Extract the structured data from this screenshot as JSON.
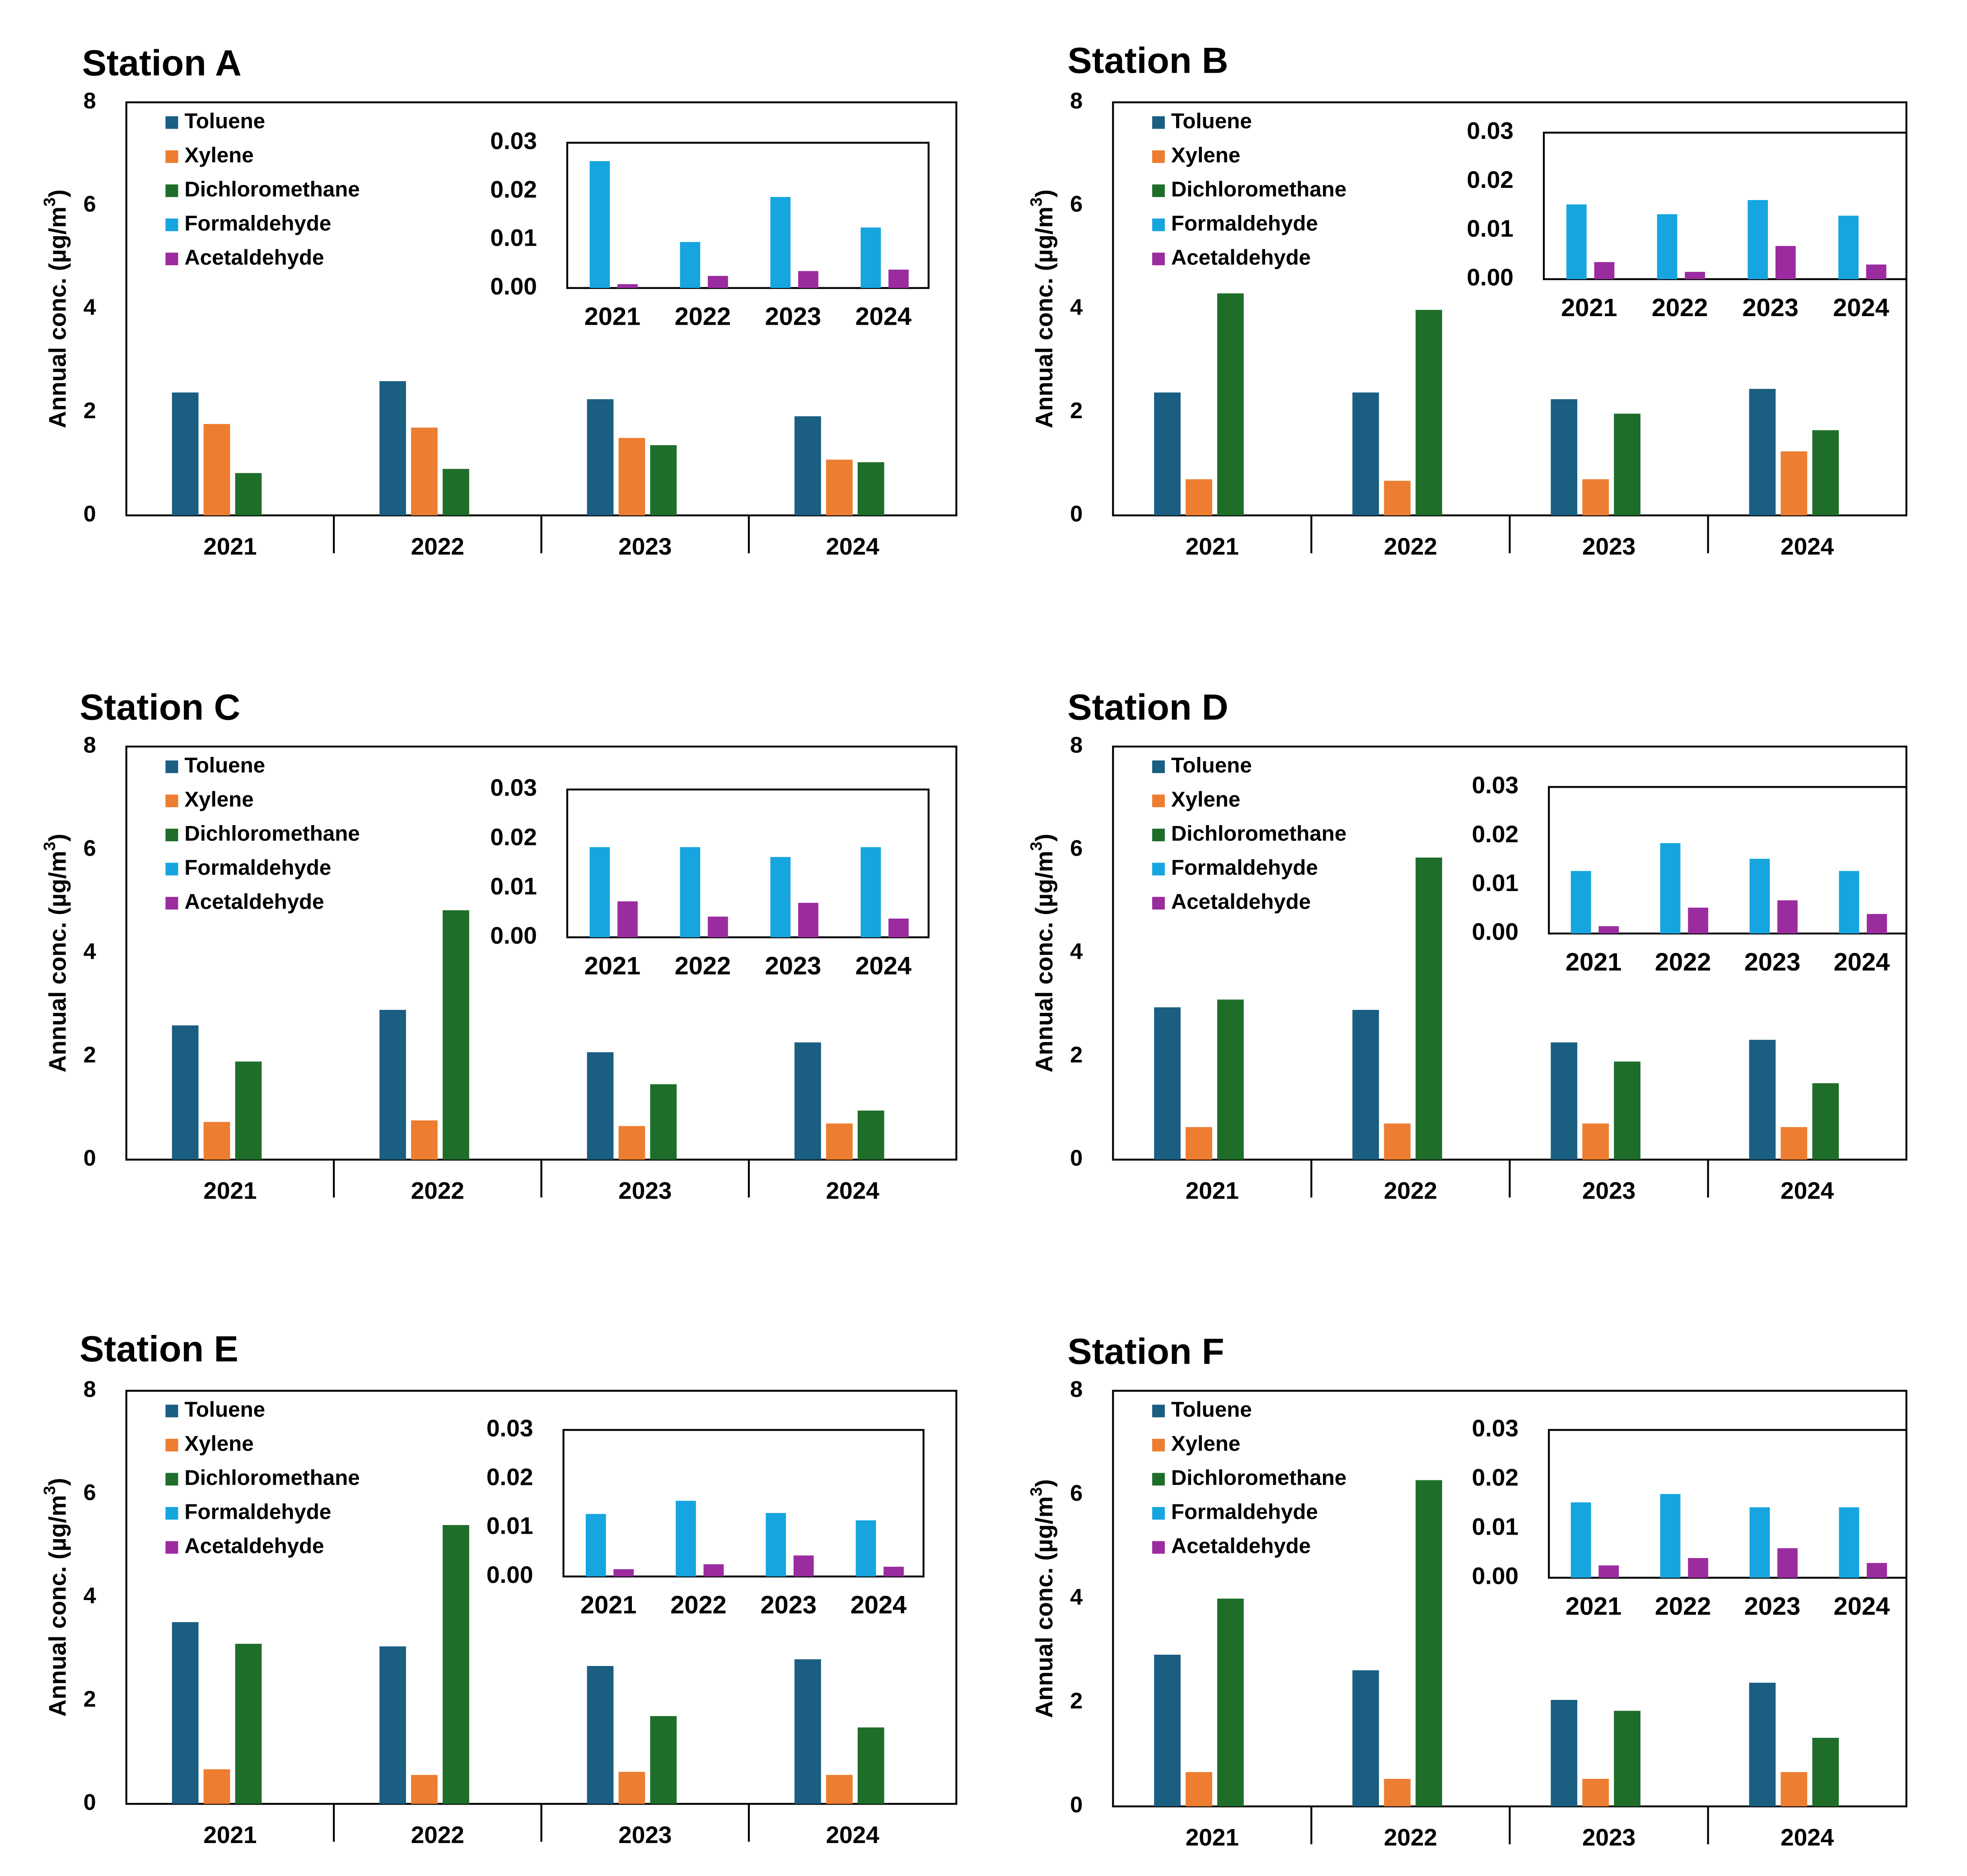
{
  "colors": {
    "Toluene": "#1a5e82",
    "Xylene": "#ed7d31",
    "Dichloromethane": "#1e6e2a",
    "Formaldehyde": "#16a5df",
    "Acetaldehyde": "#9b2c9f"
  },
  "chart_data": [
    {
      "type": "bar",
      "title": "Station A",
      "ylabel": "Annual conc. (µg/m",
      "ylabel_sup": "3",
      "ylabel_close": ")",
      "ylim": [
        0,
        8
      ],
      "yticks": [
        "0",
        "2",
        "4",
        "6",
        "8"
      ],
      "categories": [
        "2021",
        "2022",
        "2023",
        "2024"
      ],
      "legend": [
        "Toluene",
        "Xylene",
        "Dichloromethane",
        "Formaldehyde",
        "Acetaldehyde"
      ],
      "series": [
        {
          "name": "Toluene",
          "values": [
            2.38,
            2.6,
            2.25,
            1.92
          ]
        },
        {
          "name": "Xylene",
          "values": [
            1.77,
            1.7,
            1.5,
            1.08
          ]
        },
        {
          "name": "Dichloromethane",
          "values": [
            0.82,
            0.9,
            1.36,
            1.03
          ]
        }
      ],
      "inset": {
        "ylim": [
          0,
          0.03
        ],
        "yticks": [
          "0.00",
          "0.01",
          "0.02",
          "0.03"
        ],
        "categories": [
          "2021",
          "2022",
          "2023",
          "2024"
        ],
        "series": [
          {
            "name": "Formaldehyde",
            "values": [
              0.0262,
              0.0095,
              0.0188,
              0.0125
            ]
          },
          {
            "name": "Acetaldehyde",
            "values": [
              0.0008,
              0.0025,
              0.0035,
              0.0038
            ]
          }
        ]
      }
    },
    {
      "type": "bar",
      "title": "Station B",
      "ylabel": "Annual conc. (µg/m",
      "ylabel_sup": "3",
      "ylabel_close": ")",
      "ylim": [
        0,
        8
      ],
      "yticks": [
        "0",
        "2",
        "4",
        "6",
        "8"
      ],
      "categories": [
        "2021",
        "2022",
        "2023",
        "2024"
      ],
      "legend": [
        "Toluene",
        "Xylene",
        "Dichloromethane",
        "Formaldehyde",
        "Acetaldehyde"
      ],
      "series": [
        {
          "name": "Toluene",
          "values": [
            2.38,
            2.38,
            2.25,
            2.45
          ]
        },
        {
          "name": "Xylene",
          "values": [
            0.7,
            0.67,
            0.7,
            1.24
          ]
        },
        {
          "name": "Dichloromethane",
          "values": [
            4.3,
            3.98,
            1.97,
            1.65
          ]
        }
      ],
      "inset": {
        "ylim": [
          0,
          0.03
        ],
        "yticks": [
          "0.00",
          "0.01",
          "0.02",
          "0.03"
        ],
        "categories": [
          "2021",
          "2022",
          "2023",
          "2024"
        ],
        "series": [
          {
            "name": "Formaldehyde",
            "values": [
              0.0153,
              0.0133,
              0.0162,
              0.013
            ]
          },
          {
            "name": "Acetaldehyde",
            "values": [
              0.0035,
              0.0015,
              0.0068,
              0.003
            ]
          }
        ]
      }
    },
    {
      "type": "bar",
      "title": "Station C",
      "ylabel": "Annual conc. (µg/m",
      "ylabel_sup": "3",
      "ylabel_close": ")",
      "ylim": [
        0,
        8
      ],
      "yticks": [
        "0",
        "2",
        "4",
        "6",
        "8"
      ],
      "categories": [
        "2021",
        "2022",
        "2023",
        "2024"
      ],
      "legend": [
        "Toluene",
        "Xylene",
        "Dichloromethane",
        "Formaldehyde",
        "Acetaldehyde"
      ],
      "series": [
        {
          "name": "Toluene",
          "values": [
            2.6,
            2.9,
            2.08,
            2.27
          ]
        },
        {
          "name": "Xylene",
          "values": [
            0.73,
            0.76,
            0.65,
            0.7
          ]
        },
        {
          "name": "Dichloromethane",
          "values": [
            1.9,
            4.83,
            1.46,
            0.95
          ]
        }
      ],
      "inset": {
        "ylim": [
          0,
          0.03
        ],
        "yticks": [
          "0.00",
          "0.01",
          "0.02",
          "0.03"
        ],
        "categories": [
          "2021",
          "2022",
          "2023",
          "2024"
        ],
        "series": [
          {
            "name": "Formaldehyde",
            "values": [
              0.0183,
              0.0183,
              0.0163,
              0.0183
            ]
          },
          {
            "name": "Acetaldehyde",
            "values": [
              0.0073,
              0.0042,
              0.007,
              0.0038
            ]
          }
        ]
      }
    },
    {
      "type": "bar",
      "title": "Station D",
      "ylabel": "Annual conc. (µg/m",
      "ylabel_sup": "3",
      "ylabel_close": ")",
      "ylim": [
        0,
        8
      ],
      "yticks": [
        "0",
        "2",
        "4",
        "6",
        "8"
      ],
      "categories": [
        "2021",
        "2022",
        "2023",
        "2024"
      ],
      "legend": [
        "Toluene",
        "Xylene",
        "Dichloromethane",
        "Formaldehyde",
        "Acetaldehyde"
      ],
      "series": [
        {
          "name": "Toluene",
          "values": [
            2.95,
            2.9,
            2.27,
            2.32
          ]
        },
        {
          "name": "Xylene",
          "values": [
            0.63,
            0.7,
            0.7,
            0.63
          ]
        },
        {
          "name": "Dichloromethane",
          "values": [
            3.1,
            5.85,
            1.9,
            1.48
          ]
        }
      ],
      "inset": {
        "ylim": [
          0,
          0.03
        ],
        "yticks": [
          "0.00",
          "0.01",
          "0.02",
          "0.03"
        ],
        "categories": [
          "2021",
          "2022",
          "2023",
          "2024"
        ],
        "series": [
          {
            "name": "Formaldehyde",
            "values": [
              0.0128,
              0.0185,
              0.0153,
              0.0128
            ]
          },
          {
            "name": "Acetaldehyde",
            "values": [
              0.0015,
              0.0053,
              0.0068,
              0.004
            ]
          }
        ]
      }
    },
    {
      "type": "bar",
      "title": "Station E",
      "ylabel": "Annual conc. (µg/m",
      "ylabel_sup": "3",
      "ylabel_close": ")",
      "ylim": [
        0,
        8
      ],
      "yticks": [
        "0",
        "2",
        "4",
        "6",
        "8"
      ],
      "categories": [
        "2021",
        "2022",
        "2023",
        "2024"
      ],
      "legend": [
        "Toluene",
        "Xylene",
        "Dichloromethane",
        "Formaldehyde",
        "Acetaldehyde"
      ],
      "series": [
        {
          "name": "Toluene",
          "values": [
            3.52,
            3.05,
            2.67,
            2.8
          ]
        },
        {
          "name": "Xylene",
          "values": [
            0.67,
            0.56,
            0.62,
            0.56
          ]
        },
        {
          "name": "Dichloromethane",
          "values": [
            3.1,
            5.4,
            1.7,
            1.48
          ]
        }
      ],
      "inset": {
        "ylim": [
          0,
          0.03
        ],
        "yticks": [
          "0.00",
          "0.01",
          "0.02",
          "0.03"
        ],
        "categories": [
          "2021",
          "2022",
          "2023",
          "2024"
        ],
        "series": [
          {
            "name": "Formaldehyde",
            "values": [
              0.0128,
              0.0155,
              0.013,
              0.0115
            ]
          },
          {
            "name": "Acetaldehyde",
            "values": [
              0.0015,
              0.0025,
              0.0043,
              0.002
            ]
          }
        ]
      }
    },
    {
      "type": "bar",
      "title": "Station F",
      "ylabel": "Annual conc. (µg/m",
      "ylabel_sup": "3",
      "ylabel_close": ")",
      "ylim": [
        0,
        8
      ],
      "yticks": [
        "0",
        "2",
        "4",
        "6",
        "8"
      ],
      "categories": [
        "2021",
        "2022",
        "2023",
        "2024"
      ],
      "legend": [
        "Toluene",
        "Xylene",
        "Dichloromethane",
        "Formaldehyde",
        "Acetaldehyde"
      ],
      "series": [
        {
          "name": "Toluene",
          "values": [
            2.92,
            2.62,
            2.05,
            2.38
          ]
        },
        {
          "name": "Xylene",
          "values": [
            0.66,
            0.53,
            0.53,
            0.66
          ]
        },
        {
          "name": "Dichloromethane",
          "values": [
            4.0,
            6.28,
            1.84,
            1.32
          ]
        }
      ],
      "inset": {
        "ylim": [
          0,
          0.03
        ],
        "yticks": [
          "0.00",
          "0.01",
          "0.02",
          "0.03"
        ],
        "categories": [
          "2021",
          "2022",
          "2023",
          "2024"
        ],
        "series": [
          {
            "name": "Formaldehyde",
            "values": [
              0.0153,
              0.017,
              0.0143,
              0.0143
            ]
          },
          {
            "name": "Acetaldehyde",
            "values": [
              0.0025,
              0.004,
              0.006,
              0.003
            ]
          }
        ]
      }
    }
  ]
}
